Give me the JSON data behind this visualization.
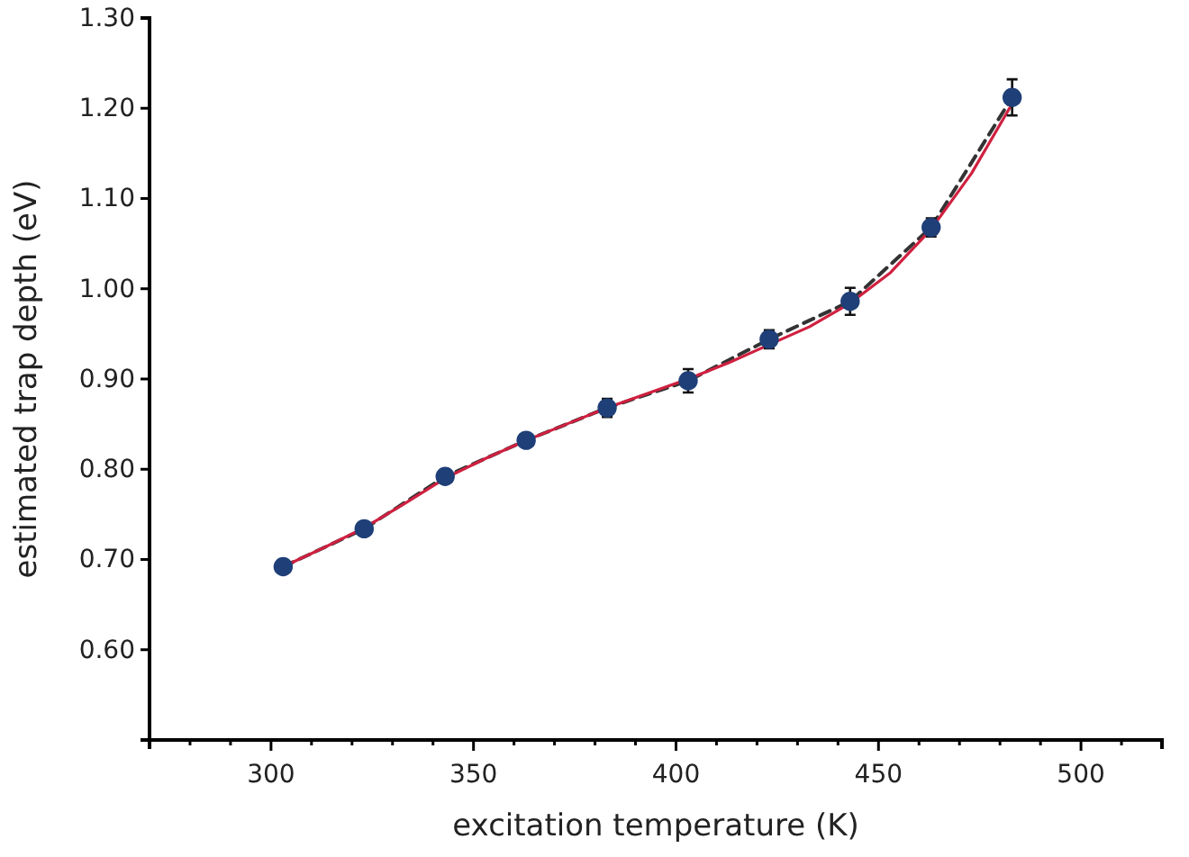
{
  "chart_data": {
    "type": "scatter",
    "xlabel": "excitation temperature (K)",
    "ylabel": "estimated trap depth (eV)",
    "xlim": [
      270,
      520
    ],
    "ylim": [
      0.5,
      1.3
    ],
    "xticks": [
      {
        "value": 280,
        "label": null
      },
      {
        "value": 290,
        "label": null
      },
      300,
      {
        "value": 310,
        "label": null
      },
      {
        "value": 320,
        "label": null
      },
      {
        "value": 330,
        "label": null
      },
      {
        "value": 340,
        "label": null
      },
      350,
      {
        "value": 360,
        "label": null
      },
      {
        "value": 370,
        "label": null
      },
      {
        "value": 380,
        "label": null
      },
      {
        "value": 390,
        "label": null
      },
      400,
      {
        "value": 410,
        "label": null
      },
      {
        "value": 420,
        "label": null
      },
      {
        "value": 430,
        "label": null
      },
      {
        "value": 440,
        "label": null
      },
      450,
      {
        "value": 460,
        "label": null
      },
      {
        "value": 470,
        "label": null
      },
      {
        "value": 480,
        "label": null
      },
      {
        "value": 490,
        "label": null
      },
      500,
      {
        "value": 510,
        "label": null
      }
    ],
    "yticks": [
      {
        "value": 0.6,
        "label": "0.60"
      },
      {
        "value": 0.7,
        "label": "0.70"
      },
      {
        "value": 0.8,
        "label": "0.80"
      },
      {
        "value": 0.9,
        "label": "0.90"
      },
      {
        "value": 1.0,
        "label": "1.00"
      },
      {
        "value": 1.1,
        "label": "1.10"
      },
      {
        "value": 1.2,
        "label": "1.20"
      },
      {
        "value": 1.3,
        "label": "1.30"
      }
    ],
    "grid": false,
    "series": [
      {
        "type": "line",
        "line_style": "dashed",
        "marker": "none",
        "color": "#333333",
        "x": [
          303,
          323,
          343,
          363,
          383,
          403,
          423,
          443,
          463,
          483
        ],
        "values": [
          0.692,
          0.734,
          0.792,
          0.832,
          0.868,
          0.898,
          0.944,
          0.986,
          1.068,
          1.212
        ]
      },
      {
        "type": "line",
        "line_style": "solid",
        "marker": "none",
        "color": "#d02040",
        "x": [
          303,
          313,
          323,
          333,
          343,
          353,
          363,
          373,
          383,
          393,
          403,
          413,
          423,
          433,
          443,
          453,
          463,
          473,
          483
        ],
        "values": [
          0.692,
          0.713,
          0.735,
          0.762,
          0.79,
          0.812,
          0.832,
          0.85,
          0.868,
          0.884,
          0.9,
          0.918,
          0.938,
          0.958,
          0.984,
          1.018,
          1.066,
          1.128,
          1.205
        ]
      },
      {
        "marker": "circle",
        "color": "#1f3f78",
        "x": [
          303,
          323,
          343,
          363,
          383,
          403,
          423,
          443,
          463,
          483
        ],
        "values": [
          0.692,
          0.734,
          0.792,
          0.832,
          0.868,
          0.898,
          0.944,
          0.986,
          1.068,
          1.212
        ],
        "errors": [
          null,
          null,
          null,
          null,
          0.01,
          0.013,
          0.01,
          0.015,
          0.01,
          0.02
        ]
      }
    ]
  }
}
